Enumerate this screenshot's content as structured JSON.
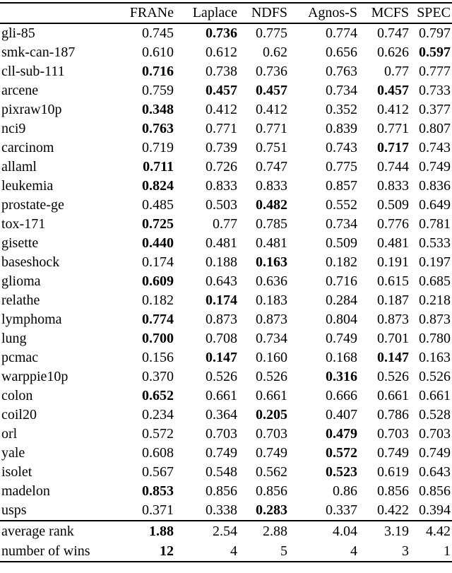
{
  "colors": {
    "text": "#000000",
    "background": "#ffffff",
    "rule": "#000000"
  },
  "table": {
    "columns": [
      "",
      "FRANe",
      "Laplace",
      "NDFS",
      "Agnos-S",
      "MCFS",
      "SPEC"
    ],
    "rows": [
      {
        "label": "gli-85",
        "values": [
          "0.745",
          "0.736",
          "0.775",
          "0.774",
          "0.747",
          "0.797"
        ],
        "bold": [
          1
        ]
      },
      {
        "label": "smk-can-187",
        "values": [
          "0.610",
          "0.612",
          "0.62",
          "0.656",
          "0.626",
          "0.597"
        ],
        "bold": [
          5
        ]
      },
      {
        "label": "cll-sub-111",
        "values": [
          "0.716",
          "0.738",
          "0.736",
          "0.763",
          "0.77",
          "0.777"
        ],
        "bold": [
          0
        ]
      },
      {
        "label": "arcene",
        "values": [
          "0.759",
          "0.457",
          "0.457",
          "0.734",
          "0.457",
          "0.733"
        ],
        "bold": [
          1,
          2,
          4
        ]
      },
      {
        "label": "pixraw10p",
        "values": [
          "0.348",
          "0.412",
          "0.412",
          "0.352",
          "0.412",
          "0.377"
        ],
        "bold": [
          0
        ]
      },
      {
        "label": "nci9",
        "values": [
          "0.763",
          "0.771",
          "0.771",
          "0.839",
          "0.771",
          "0.807"
        ],
        "bold": [
          0
        ]
      },
      {
        "label": "carcinom",
        "values": [
          "0.719",
          "0.739",
          "0.751",
          "0.743",
          "0.717",
          "0.743"
        ],
        "bold": [
          4
        ]
      },
      {
        "label": "allaml",
        "values": [
          "0.711",
          "0.726",
          "0.747",
          "0.775",
          "0.744",
          "0.749"
        ],
        "bold": [
          0
        ]
      },
      {
        "label": "leukemia",
        "values": [
          "0.824",
          "0.833",
          "0.833",
          "0.857",
          "0.833",
          "0.836"
        ],
        "bold": [
          0
        ]
      },
      {
        "label": "prostate-ge",
        "values": [
          "0.485",
          "0.503",
          "0.482",
          "0.552",
          "0.509",
          "0.649"
        ],
        "bold": [
          2
        ]
      },
      {
        "label": "tox-171",
        "values": [
          "0.725",
          "0.77",
          "0.785",
          "0.734",
          "0.776",
          "0.781"
        ],
        "bold": [
          0
        ]
      },
      {
        "label": "gisette",
        "values": [
          "0.440",
          "0.481",
          "0.481",
          "0.509",
          "0.481",
          "0.533"
        ],
        "bold": [
          0
        ]
      },
      {
        "label": "baseshock",
        "values": [
          "0.174",
          "0.188",
          "0.163",
          "0.182",
          "0.191",
          "0.197"
        ],
        "bold": [
          2
        ]
      },
      {
        "label": "glioma",
        "values": [
          "0.609",
          "0.643",
          "0.636",
          "0.716",
          "0.615",
          "0.685"
        ],
        "bold": [
          0
        ]
      },
      {
        "label": "relathe",
        "values": [
          "0.182",
          "0.174",
          "0.183",
          "0.284",
          "0.187",
          "0.218"
        ],
        "bold": [
          1
        ]
      },
      {
        "label": "lymphoma",
        "values": [
          "0.774",
          "0.873",
          "0.873",
          "0.804",
          "0.873",
          "0.873"
        ],
        "bold": [
          0
        ]
      },
      {
        "label": "lung",
        "values": [
          "0.700",
          "0.708",
          "0.734",
          "0.749",
          "0.701",
          "0.780"
        ],
        "bold": [
          0
        ]
      },
      {
        "label": "pcmac",
        "values": [
          "0.156",
          "0.147",
          "0.160",
          "0.168",
          "0.147",
          "0.163"
        ],
        "bold": [
          1,
          4
        ]
      },
      {
        "label": "warppie10p",
        "values": [
          "0.370",
          "0.526",
          "0.526",
          "0.316",
          "0.526",
          "0.526"
        ],
        "bold": [
          3
        ]
      },
      {
        "label": "colon",
        "values": [
          "0.652",
          "0.661",
          "0.661",
          "0.666",
          "0.661",
          "0.661"
        ],
        "bold": [
          0
        ]
      },
      {
        "label": "coil20",
        "values": [
          "0.234",
          "0.364",
          "0.205",
          "0.407",
          "0.786",
          "0.528"
        ],
        "bold": [
          2
        ]
      },
      {
        "label": "orl",
        "values": [
          "0.572",
          "0.703",
          "0.703",
          "0.479",
          "0.703",
          "0.703"
        ],
        "bold": [
          3
        ]
      },
      {
        "label": "yale",
        "values": [
          "0.608",
          "0.749",
          "0.749",
          "0.572",
          "0.749",
          "0.749"
        ],
        "bold": [
          3
        ]
      },
      {
        "label": "isolet",
        "values": [
          "0.567",
          "0.548",
          "0.562",
          "0.523",
          "0.619",
          "0.643"
        ],
        "bold": [
          3
        ]
      },
      {
        "label": "madelon",
        "values": [
          "0.853",
          "0.856",
          "0.856",
          "0.86",
          "0.856",
          "0.856"
        ],
        "bold": [
          0
        ]
      },
      {
        "label": "usps",
        "values": [
          "0.371",
          "0.338",
          "0.283",
          "0.337",
          "0.422",
          "0.394"
        ],
        "bold": [
          2
        ]
      }
    ],
    "summary_rows": [
      {
        "label": "average rank",
        "values": [
          "1.88",
          "2.54",
          "2.88",
          "4.04",
          "3.19",
          "4.42"
        ],
        "bold": [
          0
        ]
      },
      {
        "label": "number of wins",
        "values": [
          "12",
          "4",
          "5",
          "4",
          "3",
          "1"
        ],
        "bold": [
          0
        ]
      }
    ]
  }
}
